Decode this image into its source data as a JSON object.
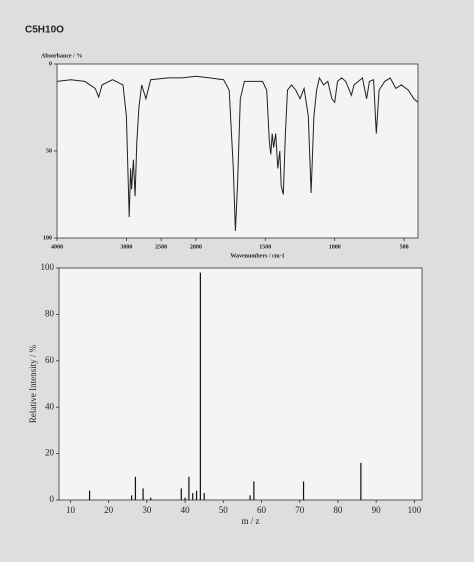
{
  "title": "C5H10O",
  "chart_data": [
    {
      "type": "line",
      "x_label": "Wavenumbers / cm-1",
      "y_label": "Absorbance / %",
      "color": "#222222",
      "xlim": [
        4000,
        400
      ],
      "x_scale_change": 2000,
      "xticks": [
        4000,
        3000,
        2500,
        2000,
        1500,
        1000,
        500
      ],
      "ylim": [
        100,
        0
      ],
      "yticks": [
        0,
        50,
        100
      ],
      "x": [
        4000,
        3800,
        3600,
        3450,
        3400,
        3350,
        3200,
        3050,
        3000,
        2960,
        2940,
        2925,
        2900,
        2875,
        2850,
        2820,
        2780,
        2720,
        2650,
        2400,
        2200,
        2000,
        1900,
        1800,
        1760,
        1730,
        1715,
        1700,
        1680,
        1650,
        1600,
        1520,
        1490,
        1470,
        1460,
        1450,
        1440,
        1425,
        1410,
        1395,
        1385,
        1370,
        1355,
        1340,
        1310,
        1280,
        1250,
        1220,
        1190,
        1170,
        1150,
        1130,
        1110,
        1080,
        1050,
        1020,
        1000,
        980,
        950,
        920,
        880,
        860,
        830,
        800,
        770,
        750,
        720,
        700,
        680,
        640,
        600,
        560,
        520,
        470,
        430,
        400
      ],
      "values": [
        10,
        9,
        10,
        14,
        19,
        12,
        9,
        12,
        30,
        88,
        60,
        72,
        55,
        76,
        45,
        25,
        12,
        20,
        9,
        8,
        8,
        7,
        8,
        9,
        15,
        60,
        96,
        70,
        20,
        10,
        10,
        10,
        15,
        45,
        52,
        40,
        48,
        40,
        60,
        50,
        70,
        75,
        40,
        15,
        12,
        15,
        20,
        14,
        30,
        74,
        30,
        15,
        8,
        12,
        10,
        20,
        22,
        10,
        8,
        10,
        18,
        12,
        10,
        8,
        20,
        10,
        9,
        40,
        15,
        10,
        8,
        14,
        12,
        15,
        20,
        22
      ]
    },
    {
      "type": "bar",
      "x_label": "m / z",
      "y_label": "Relative Intensity / %",
      "color": "#111111",
      "xlim": [
        7,
        102
      ],
      "xticks": [
        10,
        20,
        30,
        40,
        50,
        60,
        70,
        80,
        90,
        100
      ],
      "ylim": [
        0,
        100
      ],
      "yticks": [
        0,
        20,
        40,
        60,
        80,
        100
      ],
      "x": [
        15,
        26,
        27,
        29,
        31,
        39,
        40,
        41,
        42,
        43,
        44,
        45,
        57,
        58,
        71,
        86
      ],
      "values": [
        4,
        2,
        10,
        5,
        1,
        5,
        1,
        10,
        3,
        4,
        98,
        3,
        2,
        8,
        8,
        16
      ]
    }
  ]
}
